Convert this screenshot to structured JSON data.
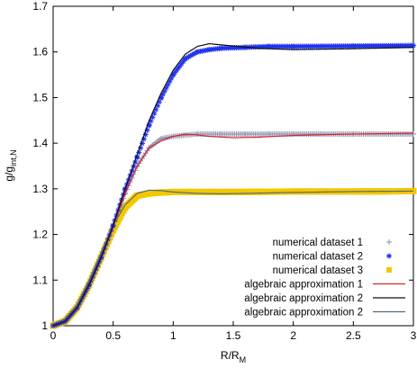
{
  "chart_data": {
    "type": "line",
    "xlabel": "R/R",
    "xlabel_sub": "M",
    "ylabel": "g/g",
    "ylabel_sub": "int,N",
    "xlim": [
      0,
      3
    ],
    "ylim": [
      1,
      1.7
    ],
    "xticks": [
      "0",
      "0.5",
      "1",
      "1.5",
      "2",
      "2.5",
      "3"
    ],
    "yticks": [
      "1",
      "1.1",
      "1.2",
      "1.3",
      "1.4",
      "1.5",
      "1.6",
      "1.7"
    ],
    "grid": false,
    "legend_position": "bottom-right",
    "series": [
      {
        "name": "numerical dataset 1",
        "kind": "points",
        "marker": "plus",
        "color": "#8a8fb0",
        "x": [
          0,
          0.1,
          0.2,
          0.3,
          0.4,
          0.5,
          0.6,
          0.7,
          0.8,
          0.9,
          1.0,
          1.2,
          1.4,
          1.6,
          1.8,
          2.0,
          2.5,
          3.0
        ],
        "y": [
          1.0,
          1.01,
          1.04,
          1.09,
          1.15,
          1.22,
          1.29,
          1.35,
          1.39,
          1.41,
          1.415,
          1.42,
          1.42,
          1.42,
          1.42,
          1.42,
          1.42,
          1.42
        ]
      },
      {
        "name": "numerical dataset 2",
        "kind": "points",
        "marker": "star",
        "color": "#2233ee",
        "x": [
          0,
          0.1,
          0.2,
          0.3,
          0.4,
          0.5,
          0.6,
          0.7,
          0.8,
          0.9,
          1.0,
          1.1,
          1.2,
          1.3,
          1.4,
          1.6,
          1.8,
          2.0,
          2.5,
          3.0
        ],
        "y": [
          1.0,
          1.01,
          1.04,
          1.09,
          1.15,
          1.22,
          1.3,
          1.37,
          1.44,
          1.5,
          1.55,
          1.585,
          1.6,
          1.605,
          1.608,
          1.61,
          1.612,
          1.612,
          1.613,
          1.614
        ]
      },
      {
        "name": "numerical dataset 3",
        "kind": "points",
        "marker": "square",
        "color": "#f2c800",
        "x": [
          0,
          0.1,
          0.2,
          0.3,
          0.4,
          0.5,
          0.6,
          0.7,
          0.8,
          0.9,
          1.0,
          1.5,
          2.0,
          2.5,
          3.0
        ],
        "y": [
          1.0,
          1.01,
          1.04,
          1.09,
          1.15,
          1.21,
          1.26,
          1.285,
          1.29,
          1.292,
          1.293,
          1.293,
          1.294,
          1.294,
          1.295
        ]
      },
      {
        "name": "algebraic approximation 1",
        "kind": "line",
        "color": "#dd2222",
        "x": [
          0,
          0.1,
          0.2,
          0.3,
          0.4,
          0.5,
          0.6,
          0.7,
          0.8,
          0.9,
          1.0,
          1.1,
          1.2,
          1.3,
          1.5,
          1.7,
          2.0,
          2.5,
          3.0
        ],
        "y": [
          1.0,
          1.01,
          1.04,
          1.09,
          1.15,
          1.22,
          1.29,
          1.35,
          1.39,
          1.405,
          1.415,
          1.42,
          1.418,
          1.415,
          1.412,
          1.413,
          1.417,
          1.42,
          1.422
        ]
      },
      {
        "name": "algebraic approximation 2",
        "kind": "line",
        "color": "#111111",
        "x": [
          0,
          0.1,
          0.2,
          0.3,
          0.4,
          0.5,
          0.6,
          0.7,
          0.8,
          0.9,
          1.0,
          1.1,
          1.2,
          1.3,
          1.5,
          1.7,
          2.0,
          2.5,
          3.0
        ],
        "y": [
          1.0,
          1.01,
          1.04,
          1.09,
          1.15,
          1.22,
          1.3,
          1.375,
          1.45,
          1.51,
          1.56,
          1.595,
          1.612,
          1.618,
          1.613,
          1.608,
          1.605,
          1.607,
          1.61
        ]
      },
      {
        "name": "algebraic approximation 2",
        "kind": "line",
        "color": "#556a80",
        "x": [
          0,
          0.1,
          0.2,
          0.3,
          0.4,
          0.5,
          0.6,
          0.7,
          0.8,
          0.9,
          1.0,
          1.2,
          1.4,
          1.6,
          1.8,
          2.0,
          2.5,
          3.0
        ],
        "y": [
          1.0,
          1.012,
          1.045,
          1.1,
          1.16,
          1.22,
          1.265,
          1.29,
          1.297,
          1.296,
          1.293,
          1.29,
          1.289,
          1.29,
          1.291,
          1.292,
          1.294,
          1.295
        ]
      }
    ]
  }
}
